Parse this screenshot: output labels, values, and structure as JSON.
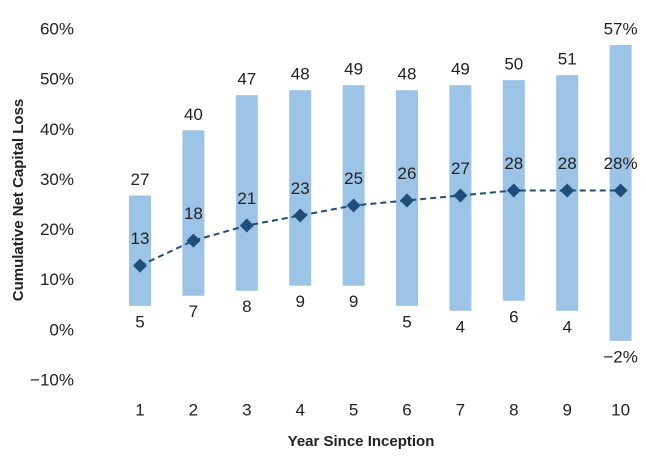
{
  "chart_data": {
    "type": "range",
    "x_label": "Year Since Inception",
    "y_label": "Cumulative Net Capital Loss",
    "categories": [
      "1",
      "2",
      "3",
      "4",
      "5",
      "6",
      "7",
      "8",
      "9",
      "10"
    ],
    "low": {
      "values": [
        5,
        7,
        8,
        9,
        9,
        5,
        4,
        6,
        4,
        -2
      ],
      "value_labels": [
        "5",
        "7",
        "8",
        "9",
        "9",
        "5",
        "4",
        "6",
        "4",
        "−2%"
      ]
    },
    "high": {
      "values": [
        27,
        40,
        47,
        48,
        49,
        48,
        49,
        50,
        51,
        57
      ],
      "value_labels": [
        "27",
        "40",
        "47",
        "48",
        "49",
        "48",
        "49",
        "50",
        "51",
        "57%"
      ]
    },
    "median": {
      "values": [
        13,
        18,
        21,
        23,
        25,
        26,
        27,
        28,
        28,
        28
      ],
      "value_labels": [
        "13",
        "18",
        "21",
        "23",
        "25",
        "26",
        "27",
        "28",
        "28",
        "28%"
      ]
    },
    "bar_color": "#9dc3e6",
    "line_color": "#1f4e79",
    "ylim": [
      -10,
      60
    ],
    "yticks": [
      {
        "value": -10,
        "label": "−10%"
      },
      {
        "value": 0,
        "label": "0%"
      },
      {
        "value": 10,
        "label": "10%"
      },
      {
        "value": 20,
        "label": "20%"
      },
      {
        "value": 30,
        "label": "30%"
      },
      {
        "value": 40,
        "label": "40%"
      },
      {
        "value": 50,
        "label": "50%"
      },
      {
        "value": 60,
        "label": "60%"
      }
    ]
  }
}
